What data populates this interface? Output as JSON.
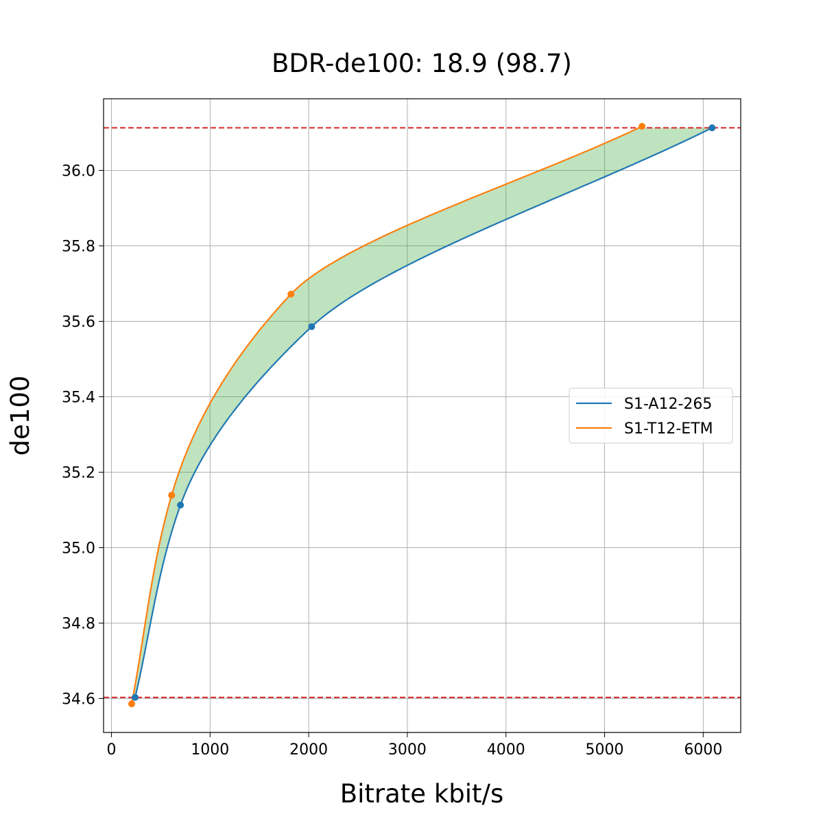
{
  "chart_data": {
    "type": "line",
    "title": "BDR-de100: 18.9 (98.7)",
    "xlabel": "Bitrate kbit/s",
    "ylabel": "de100",
    "xlim": [
      -80,
      6380
    ],
    "ylim": [
      34.51,
      36.19
    ],
    "xticks": [
      0,
      1000,
      2000,
      3000,
      4000,
      5000,
      6000
    ],
    "yticks": [
      34.6,
      34.8,
      35.0,
      35.2,
      35.4,
      35.6,
      35.8,
      36.0
    ],
    "xtick_labels": [
      "0",
      "1000",
      "2000",
      "3000",
      "4000",
      "5000",
      "6000"
    ],
    "ytick_labels": [
      "34.6",
      "34.8",
      "35.0",
      "35.2",
      "35.4",
      "35.6",
      "35.8",
      "36.0"
    ],
    "grid": true,
    "legend_position": "center-right",
    "hlines": [
      {
        "y": 36.113,
        "color": "#d62728",
        "style": "dashed"
      },
      {
        "y": 34.603,
        "color": "#d62728",
        "style": "dashed"
      }
    ],
    "fill_between": {
      "color": "#2ca02c",
      "alpha": 0.3
    },
    "series": [
      {
        "name": "S1-A12-265",
        "color": "#1f77b4",
        "points": [
          {
            "x": 240,
            "y": 34.603
          },
          {
            "x": 700,
            "y": 35.113
          },
          {
            "x": 2030,
            "y": 35.586
          },
          {
            "x": 6090,
            "y": 36.113
          }
        ]
      },
      {
        "name": "S1-T12-ETM",
        "color": "#ff7f0e",
        "points": [
          {
            "x": 205,
            "y": 34.586
          },
          {
            "x": 610,
            "y": 35.139
          },
          {
            "x": 1820,
            "y": 35.672
          },
          {
            "x": 5380,
            "y": 36.117
          }
        ]
      }
    ]
  }
}
